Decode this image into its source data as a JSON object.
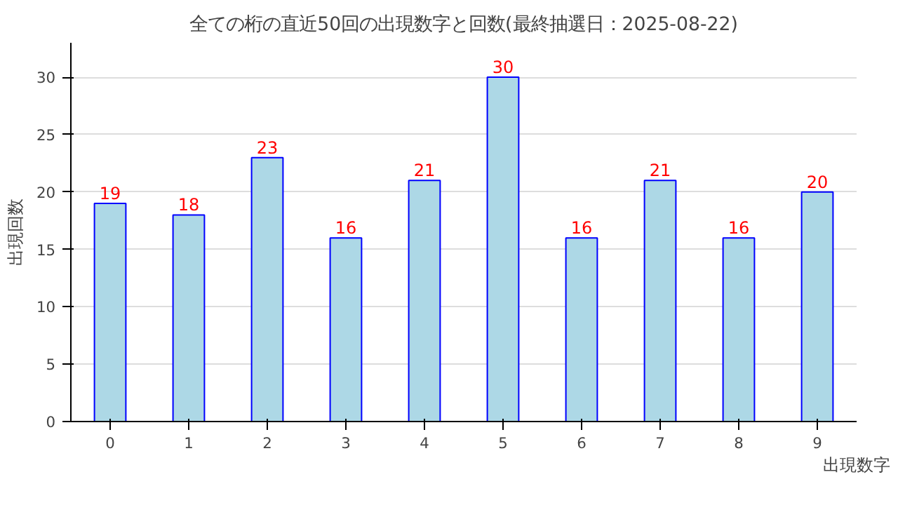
{
  "chart_data": {
    "type": "bar",
    "title": "全ての桁の直近50回の出現数字と回数(最終抽選日：2025-08-22)",
    "xlabel": "出現数字",
    "ylabel": "出現回数",
    "categories": [
      "0",
      "1",
      "2",
      "3",
      "4",
      "5",
      "6",
      "7",
      "8",
      "9"
    ],
    "values": [
      19,
      18,
      23,
      16,
      21,
      30,
      16,
      21,
      16,
      20
    ],
    "color": "#add8e6",
    "ylim": [
      0,
      33
    ],
    "yticks": [
      0,
      5,
      10,
      15,
      20,
      25,
      30
    ],
    "grid": "y",
    "data_labels": true
  }
}
